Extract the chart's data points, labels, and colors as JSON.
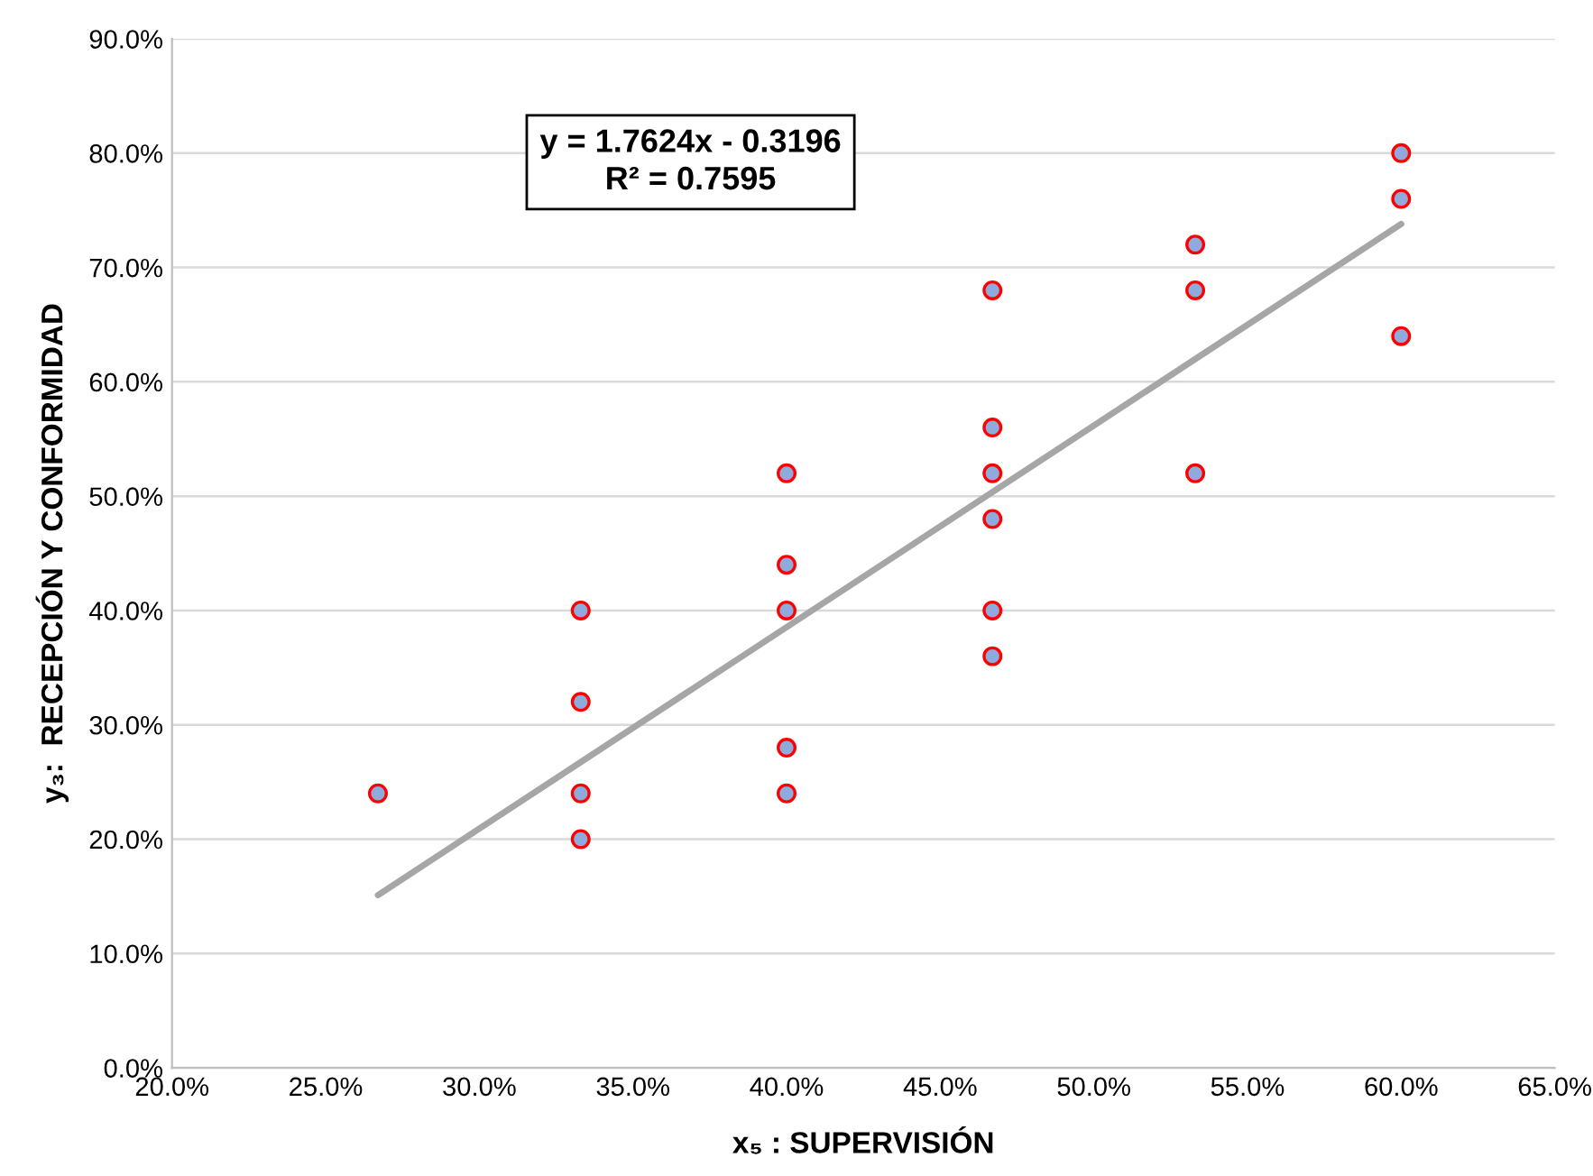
{
  "chart_data": {
    "type": "scatter",
    "xlabel": "x₅ : SUPERVISIÓN",
    "ylabel": "y₃:  RECEPCIÓN Y CONFORMIDAD",
    "annotations": [
      "y = 1.7624x - 0.3196\nR² = 0.7595"
    ],
    "xlim": [
      0.2,
      0.65
    ],
    "xticks": [
      {
        "value": 0.2,
        "label": "20.0%"
      },
      {
        "value": 0.25,
        "label": "25.0%"
      },
      {
        "value": 0.3,
        "label": "30.0%"
      },
      {
        "value": 0.35,
        "label": "35.0%"
      },
      {
        "value": 0.4,
        "label": "40.0%"
      },
      {
        "value": 0.45,
        "label": "45.0%"
      },
      {
        "value": 0.5,
        "label": "50.0%"
      },
      {
        "value": 0.55,
        "label": "55.0%"
      },
      {
        "value": 0.6,
        "label": "60.0%"
      },
      {
        "value": 0.65,
        "label": "65.0%"
      }
    ],
    "ylim": [
      0,
      0.9
    ],
    "yticks": [
      {
        "value": 0,
        "label": "0.0%"
      },
      {
        "value": 0.1,
        "label": "10.0%"
      },
      {
        "value": 0.2,
        "label": "20.0%"
      },
      {
        "value": 0.3,
        "label": "30.0%"
      },
      {
        "value": 0.4,
        "label": "40.0%"
      },
      {
        "value": 0.5,
        "label": "50.0%"
      },
      {
        "value": 0.6,
        "label": "60.0%"
      },
      {
        "value": 0.7,
        "label": "70.0%"
      },
      {
        "value": 0.8,
        "label": "80.0%"
      },
      {
        "value": 0.9,
        "label": "90.0%"
      }
    ],
    "grid": "y",
    "series": [
      {
        "marker": "circle",
        "color": "#8faadc",
        "x": [
          0.267,
          0.333,
          0.333,
          0.333,
          0.333,
          0.4,
          0.4,
          0.4,
          0.4,
          0.4,
          0.467,
          0.467,
          0.467,
          0.467,
          0.467,
          0.467,
          0.533,
          0.533,
          0.533,
          0.6,
          0.6,
          0.6
        ],
        "values": [
          0.24,
          0.4,
          0.32,
          0.24,
          0.2,
          0.52,
          0.44,
          0.4,
          0.28,
          0.24,
          0.68,
          0.56,
          0.52,
          0.48,
          0.4,
          0.36,
          0.72,
          0.68,
          0.52,
          0.8,
          0.76,
          0.64
        ]
      },
      {
        "type": "line",
        "color": "#a6a6a6",
        "x": [
          0.267,
          0.6
        ],
        "values": [
          0.151,
          0.738
        ]
      }
    ]
  }
}
